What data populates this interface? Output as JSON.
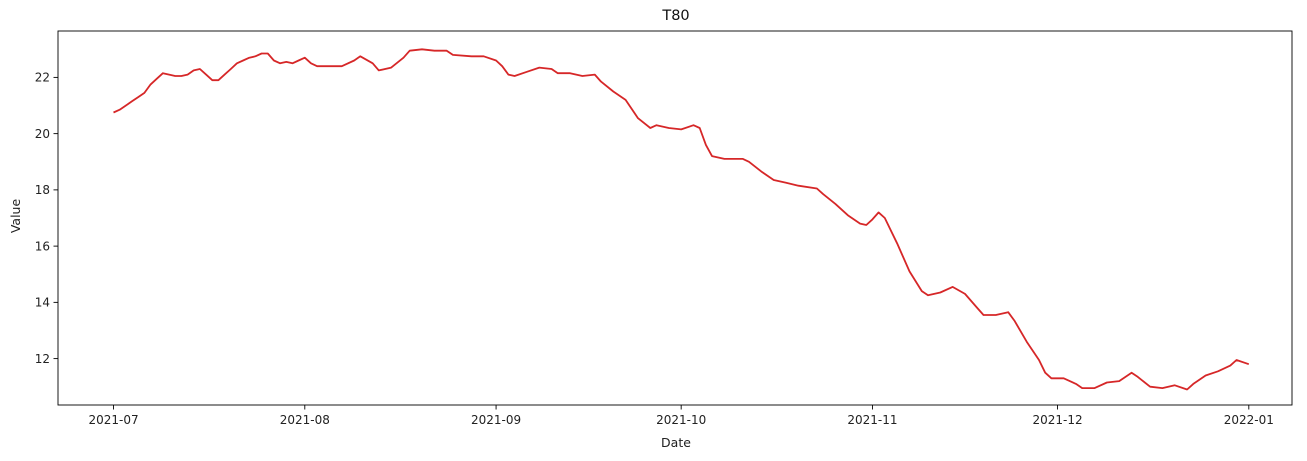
{
  "chart_data": {
    "type": "line",
    "title": "T80",
    "xlabel": "Date",
    "ylabel": "Value",
    "x_type": "date",
    "xlim": [
      "2021-06-22",
      "2022-01-08"
    ],
    "ylim": [
      10.35,
      23.65
    ],
    "x_ticks": [
      "2021-07-01",
      "2021-08-01",
      "2021-09-01",
      "2021-10-01",
      "2021-11-01",
      "2021-12-01",
      "2022-01-01"
    ],
    "x_tick_labels": [
      "2021-07",
      "2021-08",
      "2021-09",
      "2021-10",
      "2021-11",
      "2021-12",
      "2022-01"
    ],
    "y_ticks": [
      12,
      14,
      16,
      18,
      20,
      22
    ],
    "y_tick_labels": [
      "12",
      "14",
      "16",
      "18",
      "20",
      "22"
    ],
    "grid": false,
    "line_color": "#d62728",
    "series": [
      {
        "x": [
          "2021-07-01",
          "2021-07-02",
          "2021-07-03",
          "2021-07-04",
          "2021-07-05",
          "2021-07-06",
          "2021-07-07",
          "2021-07-08",
          "2021-07-09",
          "2021-07-10",
          "2021-07-11",
          "2021-07-12",
          "2021-07-13",
          "2021-07-14",
          "2021-07-15",
          "2021-07-16",
          "2021-07-17",
          "2021-07-18",
          "2021-07-19",
          "2021-07-20",
          "2021-07-21",
          "2021-07-22",
          "2021-07-23",
          "2021-07-24",
          "2021-07-25",
          "2021-07-26",
          "2021-07-27",
          "2021-07-28",
          "2021-07-29",
          "2021-07-30",
          "2021-07-31",
          "2021-08-01",
          "2021-08-02",
          "2021-08-03",
          "2021-08-05",
          "2021-08-07",
          "2021-08-09",
          "2021-08-10",
          "2021-08-12",
          "2021-08-13",
          "2021-08-15",
          "2021-08-17",
          "2021-08-18",
          "2021-08-20",
          "2021-08-22",
          "2021-08-24",
          "2021-08-25",
          "2021-08-28",
          "2021-08-30",
          "2021-09-01",
          "2021-09-02",
          "2021-09-03",
          "2021-09-04",
          "2021-09-06",
          "2021-09-08",
          "2021-09-10",
          "2021-09-11",
          "2021-09-13",
          "2021-09-15",
          "2021-09-17",
          "2021-09-18",
          "2021-09-20",
          "2021-09-22",
          "2021-09-24",
          "2021-09-26",
          "2021-09-27",
          "2021-09-29",
          "2021-10-01",
          "2021-10-03",
          "2021-10-04",
          "2021-10-05",
          "2021-10-06",
          "2021-10-08",
          "2021-10-11",
          "2021-10-12",
          "2021-10-14",
          "2021-10-16",
          "2021-10-18",
          "2021-10-20",
          "2021-10-23",
          "2021-10-24",
          "2021-10-26",
          "2021-10-28",
          "2021-10-30",
          "2021-10-31",
          "2021-11-01",
          "2021-11-02",
          "2021-11-03",
          "2021-11-05",
          "2021-11-07",
          "2021-11-09",
          "2021-11-10",
          "2021-11-12",
          "2021-11-14",
          "2021-11-16",
          "2021-11-18",
          "2021-11-19",
          "2021-11-21",
          "2021-11-23",
          "2021-11-24",
          "2021-11-26",
          "2021-11-28",
          "2021-11-29",
          "2021-11-30",
          "2021-12-02",
          "2021-12-04",
          "2021-12-05",
          "2021-12-07",
          "2021-12-09",
          "2021-12-11",
          "2021-12-13",
          "2021-12-14",
          "2021-12-16",
          "2021-12-18",
          "2021-12-20",
          "2021-12-22",
          "2021-12-23",
          "2021-12-25",
          "2021-12-27",
          "2021-12-29",
          "2021-12-30",
          "2022-01-01"
        ],
        "y": [
          20.75,
          20.85,
          21.0,
          21.15,
          21.3,
          21.45,
          21.75,
          21.95,
          22.15,
          22.1,
          22.05,
          22.05,
          22.1,
          22.25,
          22.3,
          22.1,
          21.9,
          21.9,
          22.1,
          22.3,
          22.5,
          22.6,
          22.7,
          22.75,
          22.85,
          22.85,
          22.6,
          22.5,
          22.55,
          22.5,
          22.6,
          22.7,
          22.5,
          22.4,
          22.4,
          22.4,
          22.6,
          22.75,
          22.5,
          22.25,
          22.35,
          22.7,
          22.95,
          23.0,
          22.95,
          22.95,
          22.8,
          22.75,
          22.75,
          22.6,
          22.4,
          22.1,
          22.05,
          22.2,
          22.35,
          22.3,
          22.15,
          22.15,
          22.05,
          22.1,
          21.85,
          21.5,
          21.2,
          20.55,
          20.2,
          20.3,
          20.2,
          20.15,
          20.3,
          20.2,
          19.6,
          19.2,
          19.1,
          19.1,
          19.0,
          18.65,
          18.35,
          18.25,
          18.15,
          18.05,
          17.85,
          17.5,
          17.1,
          16.8,
          16.75,
          16.95,
          17.2,
          17.0,
          16.1,
          15.1,
          14.4,
          14.25,
          14.35,
          14.55,
          14.3,
          13.8,
          13.55,
          13.55,
          13.65,
          13.35,
          12.6,
          11.95,
          11.5,
          11.3,
          11.3,
          11.1,
          10.95,
          10.95,
          11.15,
          11.2,
          11.5,
          11.35,
          11.0,
          10.95,
          11.05,
          10.9,
          11.1,
          11.4,
          11.55,
          11.75,
          11.95,
          11.8
        ]
      }
    ]
  }
}
